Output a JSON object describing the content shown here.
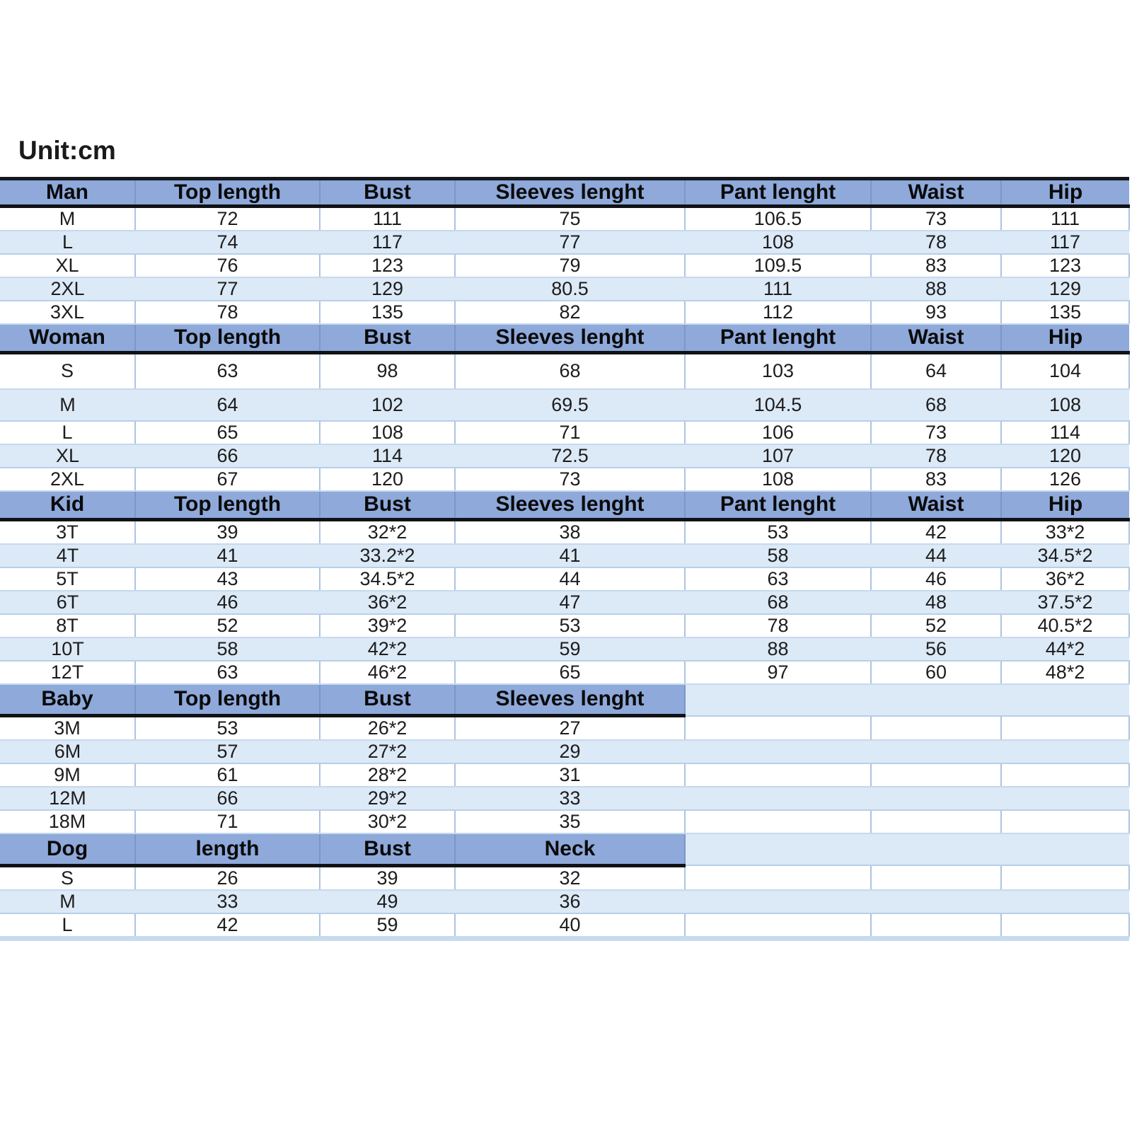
{
  "unit_label": "Unit:cm",
  "colors": {
    "header_bg": "#8ea9da",
    "row_alt_bg": "#dce9f6",
    "row_border": "#b7cfe9",
    "cell_border": "#abc4e2",
    "header_divider_black": "#101216",
    "text": "#1d1d1d"
  },
  "chart_data": [
    {
      "type": "table",
      "title": "Man",
      "columns": [
        "Man",
        "Top length",
        "Bust",
        "Sleeves lenght",
        "Pant lenght",
        "Waist",
        "Hip"
      ],
      "rows": [
        [
          "M",
          "72",
          "111",
          "75",
          "106.5",
          "73",
          "111"
        ],
        [
          "L",
          "74",
          "117",
          "77",
          "108",
          "78",
          "117"
        ],
        [
          "XL",
          "76",
          "123",
          "79",
          "109.5",
          "83",
          "123"
        ],
        [
          "2XL",
          "77",
          "129",
          "80.5",
          "111",
          "88",
          "129"
        ],
        [
          "3XL",
          "78",
          "135",
          "82",
          "112",
          "93",
          "135"
        ]
      ]
    },
    {
      "type": "table",
      "title": "Woman",
      "columns": [
        "Woman",
        "Top length",
        "Bust",
        "Sleeves lenght",
        "Pant lenght",
        "Waist",
        "Hip"
      ],
      "rows": [
        [
          "S",
          "63",
          "98",
          "68",
          "103",
          "64",
          "104"
        ],
        [
          "M",
          "64",
          "102",
          "69.5",
          "104.5",
          "68",
          "108"
        ],
        [
          "L",
          "65",
          "108",
          "71",
          "106",
          "73",
          "114"
        ],
        [
          "XL",
          "66",
          "114",
          "72.5",
          "107",
          "78",
          "120"
        ],
        [
          "2XL",
          "67",
          "120",
          "73",
          "108",
          "83",
          "126"
        ]
      ]
    },
    {
      "type": "table",
      "title": "Kid",
      "columns": [
        "Kid",
        "Top length",
        "Bust",
        "Sleeves lenght",
        "Pant lenght",
        "Waist",
        "Hip"
      ],
      "rows": [
        [
          "3T",
          "39",
          "32*2",
          "38",
          "53",
          "42",
          "33*2"
        ],
        [
          "4T",
          "41",
          "33.2*2",
          "41",
          "58",
          "44",
          "34.5*2"
        ],
        [
          "5T",
          "43",
          "34.5*2",
          "44",
          "63",
          "46",
          "36*2"
        ],
        [
          "6T",
          "46",
          "36*2",
          "47",
          "68",
          "48",
          "37.5*2"
        ],
        [
          "8T",
          "52",
          "39*2",
          "53",
          "78",
          "52",
          "40.5*2"
        ],
        [
          "10T",
          "58",
          "42*2",
          "59",
          "88",
          "56",
          "44*2"
        ],
        [
          "12T",
          "63",
          "46*2",
          "65",
          "97",
          "60",
          "48*2"
        ]
      ]
    },
    {
      "type": "table",
      "title": "Baby",
      "columns": [
        "Baby",
        "Top length",
        "Bust",
        "Sleeves lenght"
      ],
      "rows": [
        [
          "3M",
          "53",
          "26*2",
          "27"
        ],
        [
          "6M",
          "57",
          "27*2",
          "29"
        ],
        [
          "9M",
          "61",
          "28*2",
          "31"
        ],
        [
          "12M",
          "66",
          "29*2",
          "33"
        ],
        [
          "18M",
          "71",
          "30*2",
          "35"
        ]
      ]
    },
    {
      "type": "table",
      "title": "Dog",
      "columns": [
        "Dog",
        "length",
        "Bust",
        "Neck"
      ],
      "rows": [
        [
          "S",
          "26",
          "39",
          "32"
        ],
        [
          "M",
          "33",
          "49",
          "36"
        ],
        [
          "L",
          "42",
          "59",
          "40"
        ]
      ]
    }
  ]
}
